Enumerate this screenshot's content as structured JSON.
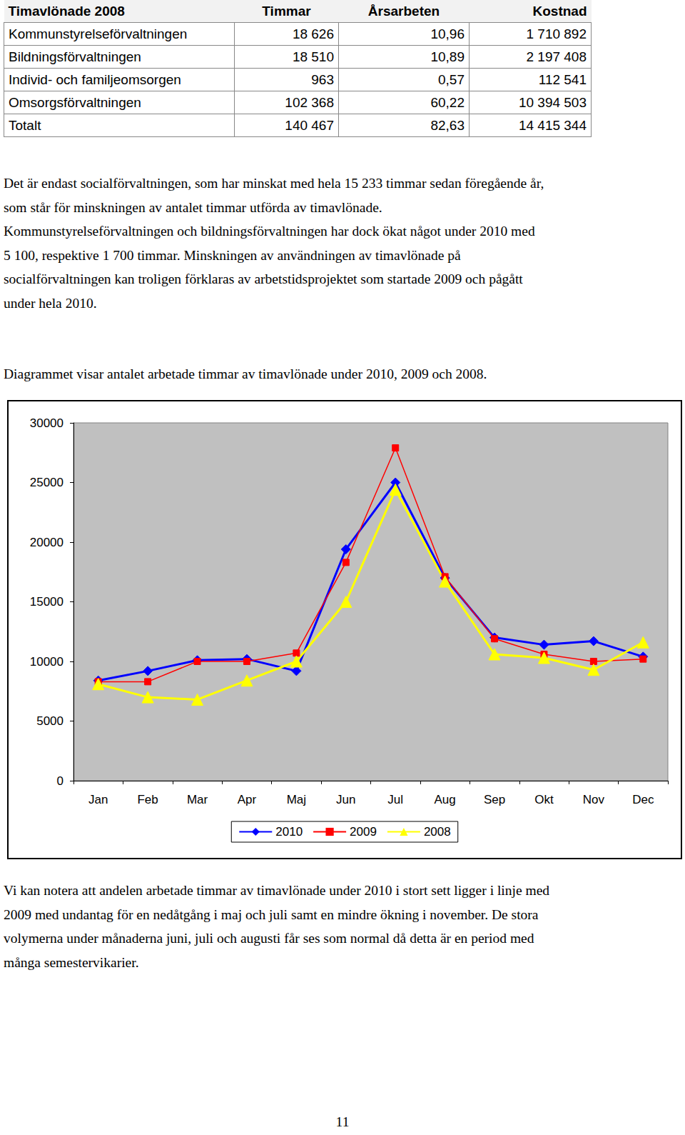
{
  "table": {
    "header": [
      "Timavlönade 2008",
      "Timmar",
      "Årsarbeten",
      "Kostnad"
    ],
    "rows": [
      [
        "Kommunstyrelseförvaltningen",
        "18 626",
        "10,96",
        "1 710 892"
      ],
      [
        "Bildningsförvaltningen",
        "18 510",
        "10,89",
        "2 197 408"
      ],
      [
        "Individ- och familjeomsorgen",
        "963",
        "0,57",
        "112 541"
      ],
      [
        "Omsorgsförvaltningen",
        "102 368",
        "60,22",
        "10 394 503"
      ],
      [
        "Totalt",
        "140 467",
        "82,63",
        "14 415 344"
      ]
    ]
  },
  "text": {
    "paragraph_1": [
      "Det är endast socialförvaltningen, som har minskat med hela 15 233 timmar sedan föregående år,",
      "som står för minskningen av antalet timmar utförda av timavlönade.",
      "Kommunstyrelseförvaltningen och bildningsförvaltningen har dock ökat något under 2010 med",
      "5 100, respektive 1 700 timmar. Minskningen av användningen av timavlönade på",
      "socialförvaltningen kan troligen förklaras av arbetstidsprojektet som startade 2009 och pågått",
      "under hela 2010."
    ],
    "caption": [
      "Diagrammet visar antalet arbetade timmar av timavlönade under 2010, 2009 och 2008."
    ],
    "paragraph_2": [
      "Vi kan notera att andelen arbetade timmar av timavlönade under 2010 i stort sett ligger i linje med",
      "2009 med undantag för en nedåtgång i maj och juli samt en mindre ökning i november. De stora",
      "volymerna under månaderna juni, juli och augusti får ses som normal då detta är en period med",
      "många semestervikarier."
    ],
    "page_number": "11"
  },
  "chart_data": {
    "type": "line",
    "categories": [
      "Jan",
      "Feb",
      "Mar",
      "Apr",
      "Maj",
      "Jun",
      "Jul",
      "Aug",
      "Sep",
      "Okt",
      "Nov",
      "Dec"
    ],
    "series": [
      {
        "name": "2010",
        "color": "#0000ff",
        "marker": "diamond",
        "values": [
          8400,
          9200,
          10100,
          10200,
          9200,
          19400,
          25000,
          17000,
          12000,
          11400,
          11700,
          10400
        ]
      },
      {
        "name": "2009",
        "color": "#ff0000",
        "marker": "square",
        "values": [
          8300,
          8300,
          10000,
          10000,
          10700,
          18300,
          27900,
          17100,
          11900,
          10600,
          10000,
          10200
        ]
      },
      {
        "name": "2008",
        "color": "#ffff00",
        "marker": "triangle",
        "values": [
          8100,
          7000,
          6800,
          8400,
          10000,
          15000,
          24400,
          16700,
          10600,
          10300,
          9300,
          11600
        ]
      }
    ],
    "ylim": [
      0,
      30000
    ],
    "yticks": [
      0,
      5000,
      10000,
      15000,
      20000,
      25000,
      30000
    ],
    "grid": false,
    "legend": "bottom"
  }
}
